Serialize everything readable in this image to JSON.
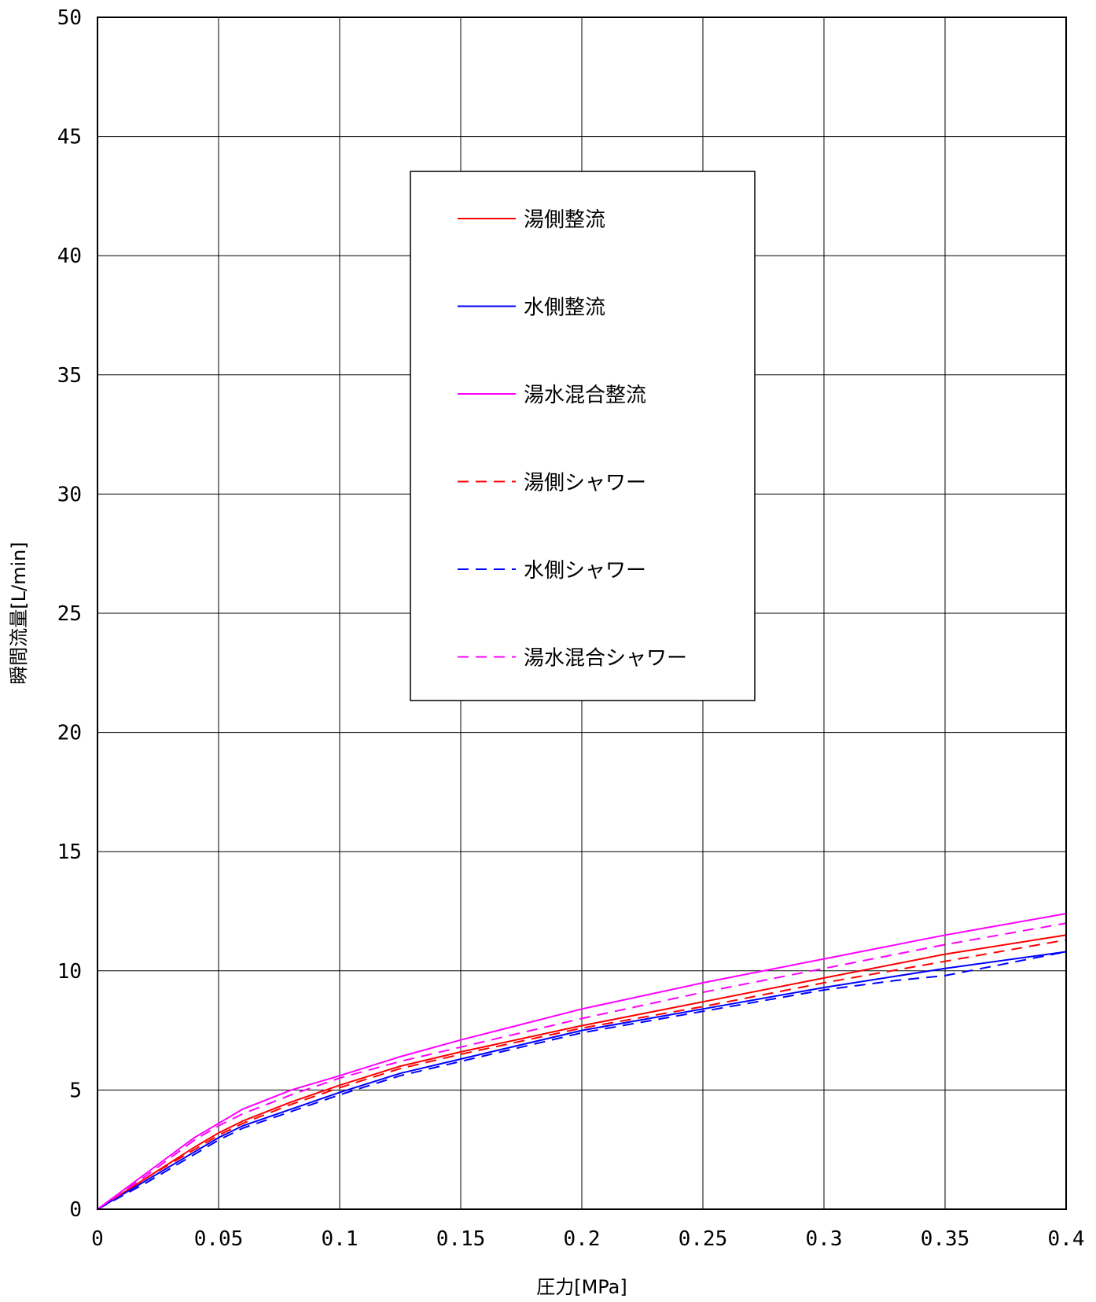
{
  "chart_data": {
    "type": "line",
    "xlabel": "圧力[MPa]",
    "ylabel": "瞬間流量[L/min]",
    "xlim": [
      0,
      0.4
    ],
    "ylim": [
      0,
      50
    ],
    "x_ticks": [
      "0",
      "0.05",
      "0.1",
      "0.15",
      "0.2",
      "0.25",
      "0.3",
      "0.35",
      "0.4"
    ],
    "y_ticks": [
      "0",
      "5",
      "10",
      "15",
      "20",
      "25",
      "30",
      "35",
      "40",
      "45",
      "50"
    ],
    "grid": true,
    "legend_position": "center-top",
    "series": [
      {
        "name": "湯側整流",
        "color": "#ff0000",
        "dash": "solid",
        "x": [
          0,
          0.02,
          0.04,
          0.05,
          0.06,
          0.08,
          0.1,
          0.125,
          0.15,
          0.2,
          0.25,
          0.3,
          0.35,
          0.4
        ],
        "y": [
          0,
          1.3,
          2.6,
          3.2,
          3.7,
          4.5,
          5.2,
          6.0,
          6.6,
          7.7,
          8.7,
          9.7,
          10.7,
          11.5
        ]
      },
      {
        "name": "水側整流",
        "color": "#0000ff",
        "dash": "solid",
        "x": [
          0,
          0.02,
          0.04,
          0.05,
          0.06,
          0.08,
          0.1,
          0.125,
          0.15,
          0.2,
          0.25,
          0.3,
          0.35,
          0.4
        ],
        "y": [
          0,
          1.2,
          2.4,
          3.0,
          3.5,
          4.2,
          4.9,
          5.7,
          6.3,
          7.5,
          8.4,
          9.3,
          10.1,
          10.8
        ]
      },
      {
        "name": "湯水混合整流",
        "color": "#ff00ff",
        "dash": "solid",
        "x": [
          0,
          0.02,
          0.04,
          0.05,
          0.06,
          0.08,
          0.1,
          0.125,
          0.15,
          0.2,
          0.25,
          0.3,
          0.35,
          0.4
        ],
        "y": [
          0,
          1.5,
          3.0,
          3.6,
          4.2,
          5.0,
          5.6,
          6.4,
          7.1,
          8.4,
          9.5,
          10.5,
          11.5,
          12.4
        ]
      },
      {
        "name": "湯側シャワー",
        "color": "#ff0000",
        "dash": "dashed",
        "x": [
          0,
          0.02,
          0.04,
          0.05,
          0.06,
          0.08,
          0.1,
          0.125,
          0.15,
          0.2,
          0.25,
          0.3,
          0.35,
          0.4
        ],
        "y": [
          0,
          1.3,
          2.5,
          3.1,
          3.6,
          4.4,
          5.1,
          5.9,
          6.5,
          7.6,
          8.5,
          9.5,
          10.4,
          11.3
        ]
      },
      {
        "name": "水側シャワー",
        "color": "#0000ff",
        "dash": "dashed",
        "x": [
          0,
          0.02,
          0.04,
          0.05,
          0.06,
          0.08,
          0.1,
          0.125,
          0.15,
          0.2,
          0.25,
          0.3,
          0.33,
          0.35,
          0.4
        ],
        "y": [
          0,
          1.1,
          2.3,
          2.9,
          3.4,
          4.1,
          4.8,
          5.6,
          6.2,
          7.4,
          8.3,
          9.2,
          9.6,
          9.8,
          10.8
        ]
      },
      {
        "name": "湯水混合シャワー",
        "color": "#ff00ff",
        "dash": "dashed",
        "x": [
          0,
          0.02,
          0.04,
          0.05,
          0.06,
          0.08,
          0.1,
          0.125,
          0.15,
          0.2,
          0.25,
          0.3,
          0.35,
          0.4
        ],
        "y": [
          0,
          1.4,
          2.9,
          3.5,
          4.0,
          4.8,
          5.5,
          6.2,
          6.8,
          8.0,
          9.1,
          10.1,
          11.1,
          12.0
        ]
      }
    ]
  }
}
